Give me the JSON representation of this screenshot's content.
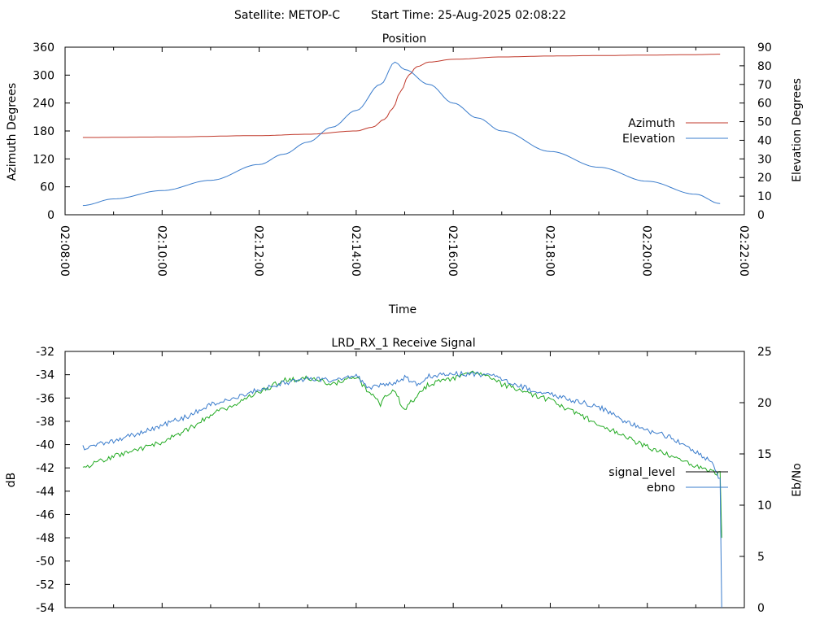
{
  "header": {
    "satellite_label": "Satellite: METOP-C",
    "start_time_label": "Start Time: 25-Aug-2025 02:08:22"
  },
  "chart_data": [
    {
      "type": "line",
      "title": "Position",
      "xlabel": "Time",
      "ylabel": "Azimuth Degrees",
      "y2label": "Elevation Degrees",
      "x_unit": "time HH:MM:SS",
      "xlim": [
        "02:08:00",
        "02:22:00"
      ],
      "x_ticks": [
        "02:08:00",
        "02:10:00",
        "02:12:00",
        "02:14:00",
        "02:16:00",
        "02:18:00",
        "02:20:00",
        "02:22:00"
      ],
      "ylim": [
        0,
        360
      ],
      "y_ticks": [
        "0",
        "60",
        "120",
        "180",
        "240",
        "300",
        "360"
      ],
      "y2lim": [
        0,
        90
      ],
      "y2_ticks": [
        "0",
        "10",
        "20",
        "30",
        "40",
        "50",
        "60",
        "70",
        "80",
        "90"
      ],
      "grid": false,
      "legend": {
        "placement": "right-middle",
        "entries": [
          "Azimuth",
          "Elevation"
        ]
      },
      "series": [
        {
          "name": "Azimuth",
          "axis": "y",
          "color": "#c0392b",
          "x": [
            "02:08:22",
            "02:10:00",
            "02:12:00",
            "02:13:00",
            "02:14:00",
            "02:14:20",
            "02:14:35",
            "02:14:45",
            "02:14:55",
            "02:15:05",
            "02:15:15",
            "02:15:30",
            "02:16:00",
            "02:17:00",
            "02:18:00",
            "02:19:00",
            "02:20:00",
            "02:21:00",
            "02:21:30"
          ],
          "y": [
            166,
            167,
            170,
            173,
            180,
            188,
            205,
            228,
            265,
            300,
            318,
            328,
            334,
            339,
            341,
            342,
            343,
            344,
            345
          ]
        },
        {
          "name": "Elevation",
          "axis": "y2",
          "color": "#3a7ccc",
          "x": [
            "02:08:22",
            "02:09:00",
            "02:10:00",
            "02:11:00",
            "02:12:00",
            "02:12:30",
            "02:13:00",
            "02:13:30",
            "02:14:00",
            "02:14:30",
            "02:14:48",
            "02:15:00",
            "02:15:30",
            "02:16:00",
            "02:16:30",
            "02:17:00",
            "02:18:00",
            "02:19:00",
            "02:20:00",
            "02:21:00",
            "02:21:30"
          ],
          "y": [
            5,
            8.5,
            13,
            18.5,
            27,
            32.5,
            39,
            47,
            56,
            70,
            82,
            78,
            70,
            60,
            52,
            45,
            34,
            25.5,
            18,
            11,
            6
          ]
        }
      ]
    },
    {
      "type": "line",
      "title": "LRD_RX_1 Receive Signal",
      "xlabel": "",
      "ylabel": "dB",
      "y2label": "Eb/No",
      "xlim": [
        "02:08:00",
        "02:22:00"
      ],
      "ylim": [
        -54,
        -32
      ],
      "y_ticks": [
        "-32",
        "-34",
        "-36",
        "-38",
        "-40",
        "-42",
        "-44",
        "-46",
        "-48",
        "-50",
        "-52",
        "-54"
      ],
      "y2lim": [
        0,
        25
      ],
      "y2_ticks": [
        "0",
        "5",
        "10",
        "15",
        "20",
        "25"
      ],
      "grid": false,
      "legend": {
        "placement": "right-lower-middle",
        "entries": [
          "signal_level",
          "ebno"
        ]
      },
      "series": [
        {
          "name": "signal_level",
          "axis": "y",
          "color": "#22aa22",
          "x": [
            "02:08:22",
            "02:09:00",
            "02:10:00",
            "02:10:30",
            "02:11:00",
            "02:11:30",
            "02:12:00",
            "02:12:30",
            "02:13:00",
            "02:13:30",
            "02:14:00",
            "02:14:15",
            "02:14:30",
            "02:14:45",
            "02:15:00",
            "02:15:15",
            "02:15:30",
            "02:16:00",
            "02:16:30",
            "02:17:00",
            "02:17:30",
            "02:18:00",
            "02:18:30",
            "02:19:00",
            "02:19:30",
            "02:20:00",
            "02:20:30",
            "02:21:00",
            "02:21:20",
            "02:21:30",
            "02:21:32"
          ],
          "y": [
            -42,
            -41,
            -39.8,
            -38.8,
            -37.5,
            -36.5,
            -35.5,
            -34.5,
            -34.3,
            -34.8,
            -34.2,
            -35.5,
            -36.5,
            -35.2,
            -37,
            -35.8,
            -34.8,
            -34.3,
            -33.8,
            -34.8,
            -35.5,
            -36.2,
            -37.3,
            -38.2,
            -39.3,
            -40.2,
            -41,
            -41.8,
            -42.3,
            -42.5,
            -48
          ]
        },
        {
          "name": "ebno",
          "axis": "y2",
          "color": "#3a7ccc",
          "x": [
            "02:08:22",
            "02:09:00",
            "02:10:00",
            "02:10:30",
            "02:11:00",
            "02:11:30",
            "02:12:00",
            "02:12:30",
            "02:13:00",
            "02:13:30",
            "02:14:00",
            "02:14:15",
            "02:14:30",
            "02:14:45",
            "02:15:00",
            "02:15:15",
            "02:15:30",
            "02:16:00",
            "02:16:30",
            "02:17:00",
            "02:17:30",
            "02:18:00",
            "02:18:30",
            "02:19:00",
            "02:19:30",
            "02:20:00",
            "02:20:30",
            "02:21:00",
            "02:21:20",
            "02:21:30",
            "02:21:32"
          ],
          "y": [
            15.6,
            16.2,
            17.8,
            18.6,
            19.8,
            20.4,
            21.3,
            21.9,
            22.3,
            22.2,
            22.7,
            21.3,
            21.8,
            21.8,
            22.5,
            21.8,
            22.6,
            22.8,
            22.8,
            22.4,
            21.4,
            20.8,
            20.2,
            19.6,
            18.3,
            17.3,
            16.6,
            15.2,
            14.2,
            12.5,
            0
          ]
        }
      ]
    }
  ]
}
